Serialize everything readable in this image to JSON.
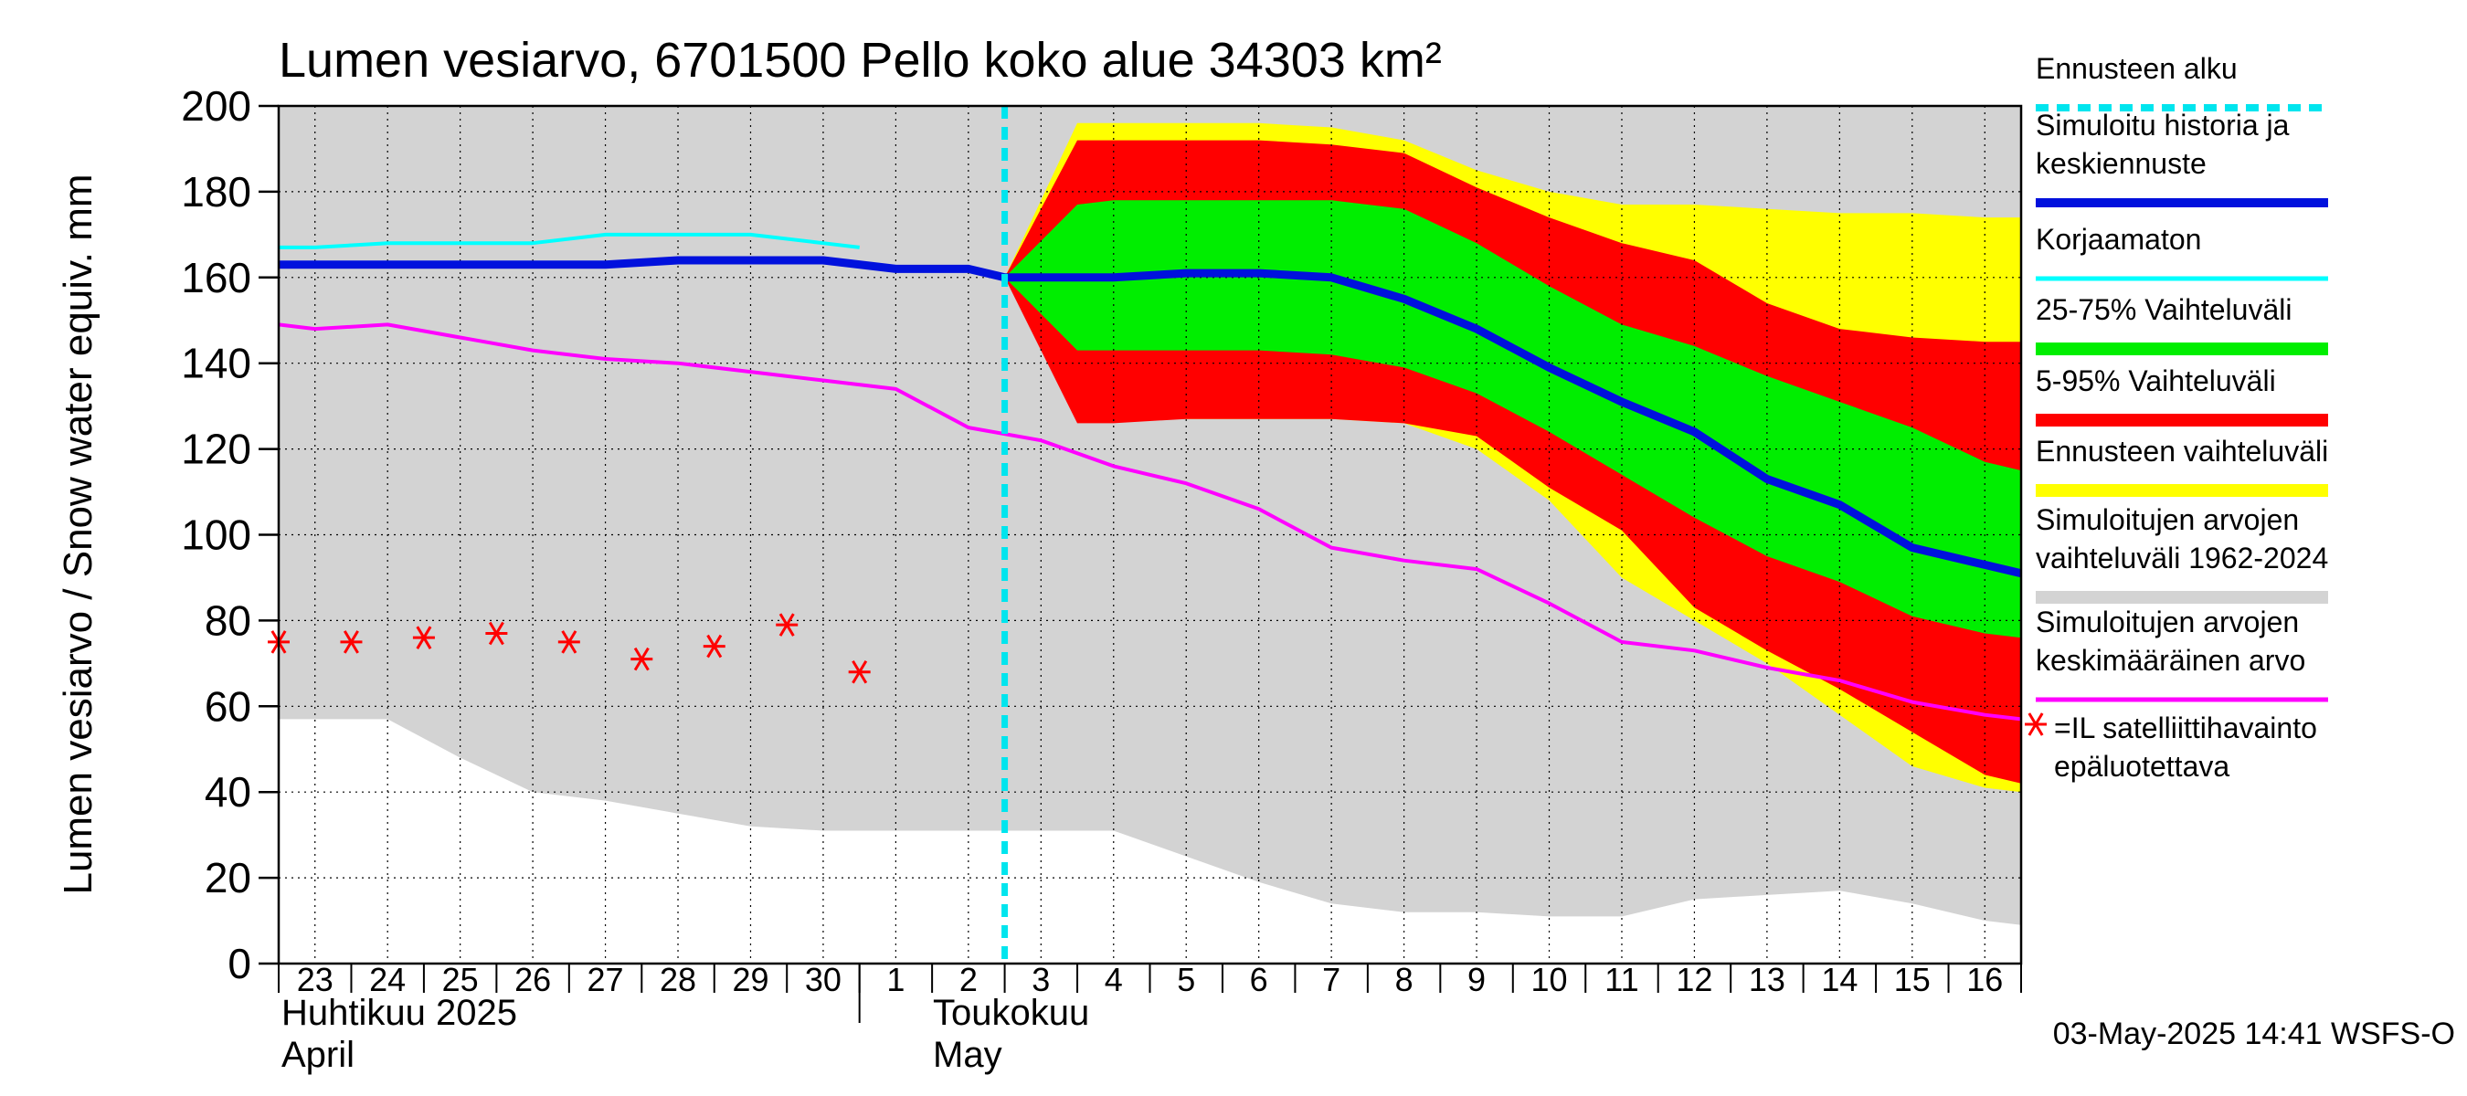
{
  "chart_data": {
    "type": "area",
    "title": "Lumen vesiarvo, 6701500 Pello koko alue 34303 km²",
    "ylabel": "Lumen vesiarvo / Snow water equiv.    mm",
    "ylim": [
      0,
      200
    ],
    "yticks": [
      0,
      20,
      40,
      60,
      80,
      100,
      120,
      140,
      160,
      180,
      200
    ],
    "x_range": [
      22.5,
      46.5
    ],
    "days": [
      {
        "x": 23,
        "label": "23"
      },
      {
        "x": 24,
        "label": "24"
      },
      {
        "x": 25,
        "label": "25"
      },
      {
        "x": 26,
        "label": "26"
      },
      {
        "x": 27,
        "label": "27"
      },
      {
        "x": 28,
        "label": "28"
      },
      {
        "x": 29,
        "label": "29"
      },
      {
        "x": 30,
        "label": "30"
      },
      {
        "x": 31,
        "label": "1"
      },
      {
        "x": 32,
        "label": "2"
      },
      {
        "x": 33,
        "label": "3"
      },
      {
        "x": 34,
        "label": "4"
      },
      {
        "x": 35,
        "label": "5"
      },
      {
        "x": 36,
        "label": "6"
      },
      {
        "x": 37,
        "label": "7"
      },
      {
        "x": 38,
        "label": "8"
      },
      {
        "x": 39,
        "label": "9"
      },
      {
        "x": 40,
        "label": "10"
      },
      {
        "x": 41,
        "label": "11"
      },
      {
        "x": 42,
        "label": "12"
      },
      {
        "x": 43,
        "label": "13"
      },
      {
        "x": 44,
        "label": "14"
      },
      {
        "x": 45,
        "label": "15"
      },
      {
        "x": 46,
        "label": "16"
      }
    ],
    "month_labels": {
      "april_fi": "Huhtikuu  2025",
      "april_en": "April",
      "may_fi": "Toukokuu",
      "may_en": "May"
    },
    "forecast_start_x": 32.5,
    "hist_range": {
      "x": [
        22.5,
        23,
        24,
        25,
        26,
        27,
        28,
        29,
        30,
        31,
        32,
        33,
        34,
        35,
        36,
        37,
        38,
        39,
        40,
        41,
        42,
        43,
        44,
        45,
        46,
        46.5
      ],
      "lower": [
        57,
        57,
        57,
        48,
        40,
        38,
        35,
        32,
        31,
        31,
        31,
        31,
        31,
        25,
        19,
        14,
        12,
        12,
        11,
        11,
        15,
        16,
        17,
        14,
        10,
        9
      ],
      "upper": [
        200,
        200,
        200,
        200,
        200,
        200,
        200,
        200,
        200,
        200,
        200,
        200,
        200,
        200,
        200,
        200,
        200,
        200,
        200,
        200,
        200,
        200,
        200,
        200,
        200,
        200
      ]
    },
    "forecast_range": {
      "x": [
        32.5,
        33.5,
        34,
        35,
        36,
        37,
        38,
        39,
        40,
        41,
        42,
        43,
        44,
        45,
        46,
        46.5
      ],
      "lower": [
        160,
        128,
        127,
        127,
        127,
        127,
        126,
        120,
        108,
        90,
        80,
        70,
        58,
        46,
        41,
        40
      ],
      "upper": [
        160,
        196,
        196,
        196,
        196,
        195,
        192,
        185,
        180,
        177,
        177,
        176,
        175,
        175,
        174,
        174
      ]
    },
    "p5_95": {
      "x": [
        32.5,
        33.5,
        34,
        35,
        36,
        37,
        38,
        39,
        40,
        41,
        42,
        43,
        44,
        45,
        46,
        46.5
      ],
      "lower": [
        160,
        126,
        126,
        127,
        127,
        127,
        126,
        123,
        111,
        101,
        83,
        73,
        64,
        54,
        44,
        42
      ],
      "upper": [
        160,
        192,
        192,
        192,
        192,
        191,
        189,
        181,
        174,
        168,
        164,
        154,
        148,
        146,
        145,
        145
      ]
    },
    "p25_75": {
      "x": [
        32.5,
        33.5,
        34,
        35,
        36,
        37,
        38,
        39,
        40,
        41,
        42,
        43,
        44,
        45,
        46,
        46.5
      ],
      "lower": [
        160,
        143,
        143,
        143,
        143,
        142,
        139,
        133,
        124,
        114,
        104,
        95,
        89,
        81,
        77,
        76
      ],
      "upper": [
        160,
        177,
        178,
        178,
        178,
        178,
        176,
        168,
        158,
        149,
        144,
        137,
        131,
        125,
        117,
        115
      ]
    },
    "series": [
      {
        "name": "Simuloitu historia ja keskiennuste",
        "color": "#0011dd",
        "x": [
          22.5,
          23,
          24,
          25,
          26,
          27,
          28,
          29,
          30,
          31,
          32,
          32.5,
          33,
          34,
          35,
          36,
          37,
          38,
          39,
          40,
          41,
          42,
          43,
          44,
          45,
          46,
          46.5
        ],
        "y": [
          163,
          163,
          163,
          163,
          163,
          163,
          164,
          164,
          164,
          162,
          162,
          160,
          160,
          160,
          161,
          161,
          160,
          155,
          148,
          139,
          131,
          124,
          113,
          107,
          97,
          93,
          91
        ]
      },
      {
        "name": "Korjaamaton",
        "color": "#00ffff",
        "x": [
          22.5,
          23,
          24,
          25,
          26,
          27,
          28,
          29,
          30,
          30.5
        ],
        "y": [
          167,
          167,
          168,
          168,
          168,
          170,
          170,
          170,
          168,
          167
        ]
      },
      {
        "name": "Simuloitujen arvojen keskimääräinen arvo",
        "color": "#ff00ff",
        "x": [
          22.5,
          23,
          24,
          25,
          26,
          27,
          28,
          29,
          30,
          31,
          32,
          33,
          34,
          35,
          36,
          37,
          38,
          39,
          40,
          41,
          42,
          43,
          44,
          45,
          46,
          46.5
        ],
        "y": [
          149,
          148,
          149,
          146,
          143,
          141,
          140,
          138,
          136,
          134,
          125,
          122,
          116,
          112,
          106,
          97,
          94,
          92,
          84,
          75,
          73,
          69,
          66,
          61,
          58,
          57
        ]
      }
    ],
    "satellite_obs": {
      "name": "=IL satelliittihavainto epäluotettava",
      "color": "#ff0000",
      "x": [
        22.5,
        23.5,
        24.5,
        25.5,
        26.5,
        27.5,
        28.5,
        29.5,
        30.5
      ],
      "y": [
        75,
        75,
        76,
        77,
        75,
        71,
        74,
        79,
        68
      ]
    },
    "legend": [
      {
        "key": "start",
        "lines": [
          "Ennusteen alku"
        ]
      },
      {
        "key": "sim",
        "lines": [
          "Simuloitu historia ja",
          "keskiennuste"
        ]
      },
      {
        "key": "raw",
        "lines": [
          "Korjaamaton"
        ]
      },
      {
        "key": "p25",
        "lines": [
          "25-75% Vaihteluväli"
        ]
      },
      {
        "key": "p5",
        "lines": [
          "5-95% Vaihteluväli"
        ]
      },
      {
        "key": "fc",
        "lines": [
          "Ennusteen vaihteluväli"
        ]
      },
      {
        "key": "hist",
        "lines": [
          "Simuloitujen arvojen",
          "vaihteluväli 1962-2024"
        ]
      },
      {
        "key": "mean",
        "lines": [
          "Simuloitujen arvojen",
          "keskimääräinen arvo"
        ]
      },
      {
        "key": "obs",
        "lines": [
          "=IL satelliittihavainto",
          "epäluotettava"
        ]
      }
    ],
    "footer": "03-May-2025 14:41 WSFS-O"
  },
  "colors": {
    "hist": "#d3d3d3",
    "forecast": "#ffff00",
    "p5_95": "#ff0000",
    "p25_75": "#00ee00",
    "start_line": "#00e5ee"
  }
}
